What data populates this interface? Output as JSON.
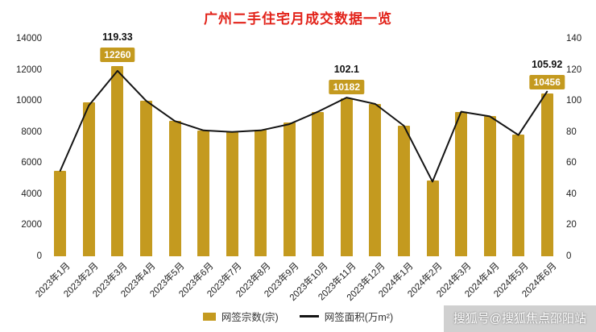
{
  "title": "广州二手住宅月成交数据一览",
  "watermark": "搜狐号@搜狐焦点邵阳站",
  "legend": {
    "bars": "网签宗数(宗)",
    "line": "网签面积(万m²)"
  },
  "colors": {
    "bar": "#C49A1F",
    "line": "#141414",
    "title": "#E2231A",
    "badge_text": "#FFFFFF"
  },
  "chart_data": {
    "type": "bar+line",
    "title": "广州二手住宅月成交数据一览",
    "categories": [
      "2023年1月",
      "2023年2月",
      "2023年3月",
      "2023年4月",
      "2023年5月",
      "2023年6月",
      "2023年7月",
      "2023年8月",
      "2023年9月",
      "2023年10月",
      "2023年11月",
      "2023年12月",
      "2024年1月",
      "2024年2月",
      "2024年3月",
      "2024年4月",
      "2024年5月",
      "2024年6月"
    ],
    "series": [
      {
        "name": "网签宗数(宗)",
        "type": "bar",
        "axis": "left",
        "values": [
          5500,
          9900,
          12260,
          10000,
          8700,
          8100,
          8050,
          8150,
          8600,
          9300,
          10182,
          9800,
          8400,
          4900,
          9300,
          9000,
          7850,
          10456
        ]
      },
      {
        "name": "网签面积(万m²)",
        "type": "line",
        "axis": "right",
        "values": [
          55,
          97,
          119.33,
          100,
          87,
          81,
          80,
          81,
          85,
          93,
          102.1,
          98,
          84,
          48,
          93,
          90,
          78,
          105.92
        ]
      }
    ],
    "left_axis": {
      "min": 0,
      "max": 14000,
      "ticks": [
        0,
        2000,
        4000,
        6000,
        8000,
        10000,
        12000,
        14000
      ]
    },
    "right_axis": {
      "min": 0,
      "max": 140,
      "ticks": [
        0,
        20,
        40,
        60,
        80,
        100,
        120,
        140
      ]
    },
    "data_labels": [
      {
        "index": 2,
        "bar_value": "12260",
        "line_value": "119.33"
      },
      {
        "index": 10,
        "bar_value": "10182",
        "line_value": "102.1"
      },
      {
        "index": 17,
        "bar_value": "10456",
        "line_value": "105.92"
      }
    ],
    "legend_position": "bottom",
    "grid": false
  }
}
